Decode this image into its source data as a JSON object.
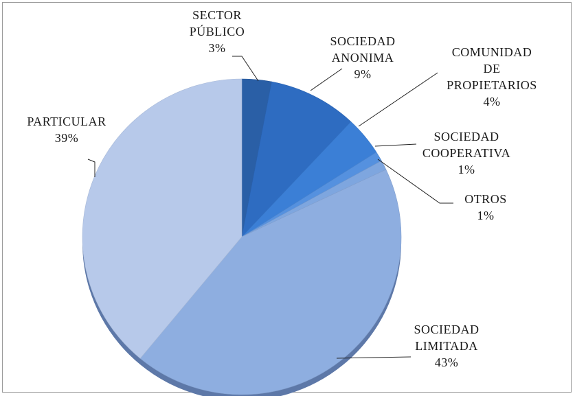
{
  "chart_data": {
    "type": "pie",
    "title": "",
    "slices": [
      {
        "label_lines": [
          "SECTOR",
          "PÚBLICO"
        ],
        "value_label": "3%",
        "value": 3,
        "color": "#2a5fa6"
      },
      {
        "label_lines": [
          "SOCIEDAD",
          "ANONIMA"
        ],
        "value_label": "9%",
        "value": 9,
        "color": "#2e6cc1"
      },
      {
        "label_lines": [
          "COMUNIDAD",
          "DE",
          "PROPIETARIOS"
        ],
        "value_label": "4%",
        "value": 4,
        "color": "#3b7fd6"
      },
      {
        "label_lines": [
          "SOCIEDAD",
          "COOPERATIVA"
        ],
        "value_label": "1%",
        "value": 1,
        "color": "#5591df"
      },
      {
        "label_lines": [
          "OTROS"
        ],
        "value_label": "1%",
        "value": 1,
        "color": "#7ea6df"
      },
      {
        "label_lines": [
          "SOCIEDAD",
          "LIMITADA"
        ],
        "value_label": "43%",
        "value": 43,
        "color": "#8eaee0"
      },
      {
        "label_lines": [
          "PARTICULAR"
        ],
        "value_label": "39%",
        "value": 39,
        "color": "#b7c9ea"
      }
    ],
    "legend": "none",
    "style": "3d-pie"
  }
}
